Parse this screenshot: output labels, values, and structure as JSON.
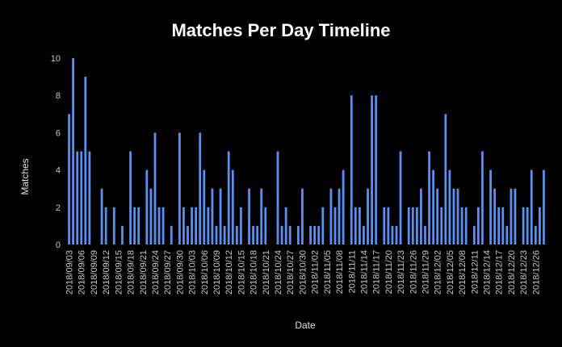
{
  "chart_data": {
    "type": "bar",
    "title": "Matches Per Day Timeline",
    "xlabel": "Date",
    "ylabel": "Matches",
    "ylim": [
      0,
      10
    ],
    "yticks": [
      0,
      2,
      4,
      6,
      8,
      10
    ],
    "grid": false,
    "colors": {
      "bar": "#5b8ff0",
      "background": "#000000",
      "text": "#ffffff"
    },
    "xtick_labels": [
      "2018/09/03",
      "2018/09/06",
      "2018/09/09",
      "2018/09/12",
      "2018/09/15",
      "2018/09/18",
      "2018/09/21",
      "2018/09/24",
      "2018/09/27",
      "2018/09/30",
      "2018/10/03",
      "2018/10/06",
      "2018/10/09",
      "2018/10/12",
      "2018/10/15",
      "2018/10/18",
      "2018/10/21",
      "2018/10/24",
      "2018/10/27",
      "2018/10/30",
      "2018/11/02",
      "2018/11/05",
      "2018/11/08",
      "2018/11/11",
      "2018/11/14",
      "2018/11/17",
      "2018/11/20",
      "2018/11/23",
      "2018/11/26",
      "2018/11/29",
      "2018/12/02",
      "2018/12/05",
      "2018/12/08",
      "2018/12/11",
      "2018/12/14",
      "2018/12/17",
      "2018/12/20",
      "2018/12/23",
      "2018/12/26"
    ],
    "x": [
      "2018/09/03",
      "2018/09/04",
      "2018/09/05",
      "2018/09/06",
      "2018/09/07",
      "2018/09/08",
      "2018/09/09",
      "2018/09/10",
      "2018/09/11",
      "2018/09/12",
      "2018/09/13",
      "2018/09/14",
      "2018/09/15",
      "2018/09/16",
      "2018/09/17",
      "2018/09/18",
      "2018/09/19",
      "2018/09/20",
      "2018/09/21",
      "2018/09/22",
      "2018/09/23",
      "2018/09/24",
      "2018/09/25",
      "2018/09/26",
      "2018/09/27",
      "2018/09/28",
      "2018/09/29",
      "2018/09/30",
      "2018/10/01",
      "2018/10/02",
      "2018/10/03",
      "2018/10/04",
      "2018/10/05",
      "2018/10/06",
      "2018/10/07",
      "2018/10/08",
      "2018/10/09",
      "2018/10/10",
      "2018/10/11",
      "2018/10/12",
      "2018/10/13",
      "2018/10/14",
      "2018/10/15",
      "2018/10/16",
      "2018/10/17",
      "2018/10/18",
      "2018/10/19",
      "2018/10/20",
      "2018/10/21",
      "2018/10/22",
      "2018/10/23",
      "2018/10/24",
      "2018/10/25",
      "2018/10/26",
      "2018/10/27",
      "2018/10/28",
      "2018/10/29",
      "2018/10/30",
      "2018/10/31",
      "2018/11/01",
      "2018/11/02",
      "2018/11/03",
      "2018/11/04",
      "2018/11/05",
      "2018/11/06",
      "2018/11/07",
      "2018/11/08",
      "2018/11/09",
      "2018/11/10",
      "2018/11/11",
      "2018/11/12",
      "2018/11/13",
      "2018/11/14",
      "2018/11/15",
      "2018/11/16",
      "2018/11/17",
      "2018/11/18",
      "2018/11/19",
      "2018/11/20",
      "2018/11/21",
      "2018/11/22",
      "2018/11/23",
      "2018/11/24",
      "2018/11/25",
      "2018/11/26",
      "2018/11/27",
      "2018/11/28",
      "2018/11/29",
      "2018/11/30",
      "2018/12/01",
      "2018/12/02",
      "2018/12/03",
      "2018/12/04",
      "2018/12/05",
      "2018/12/06",
      "2018/12/07",
      "2018/12/08",
      "2018/12/09",
      "2018/12/10",
      "2018/12/11",
      "2018/12/12",
      "2018/12/13",
      "2018/12/14",
      "2018/12/15",
      "2018/12/16",
      "2018/12/17",
      "2018/12/18",
      "2018/12/19",
      "2018/12/20",
      "2018/12/21",
      "2018/12/22",
      "2018/12/23",
      "2018/12/24",
      "2018/12/25",
      "2018/12/26",
      "2018/12/27",
      "2018/12/28"
    ],
    "values": [
      7,
      10,
      5,
      5,
      9,
      5,
      0,
      0,
      3,
      2,
      0,
      2,
      0,
      1,
      0,
      5,
      2,
      2,
      0,
      4,
      3,
      6,
      2,
      2,
      0,
      1,
      0,
      6,
      2,
      1,
      2,
      2,
      6,
      4,
      2,
      3,
      1,
      3,
      1,
      5,
      4,
      1,
      2,
      0,
      3,
      1,
      1,
      3,
      2,
      0,
      0,
      5,
      1,
      2,
      1,
      0,
      1,
      3,
      0,
      1,
      1,
      1,
      2,
      0,
      3,
      2,
      3,
      4,
      0,
      8,
      2,
      2,
      1,
      3,
      8,
      8,
      0,
      2,
      2,
      1,
      1,
      5,
      0,
      2,
      2,
      2,
      3,
      1,
      5,
      4,
      3,
      2,
      7,
      4,
      3,
      3,
      2,
      2,
      0,
      1,
      2,
      5,
      0,
      4,
      3,
      2,
      2,
      1,
      3,
      3,
      0,
      2,
      2,
      4,
      1,
      2,
      4
    ]
  }
}
